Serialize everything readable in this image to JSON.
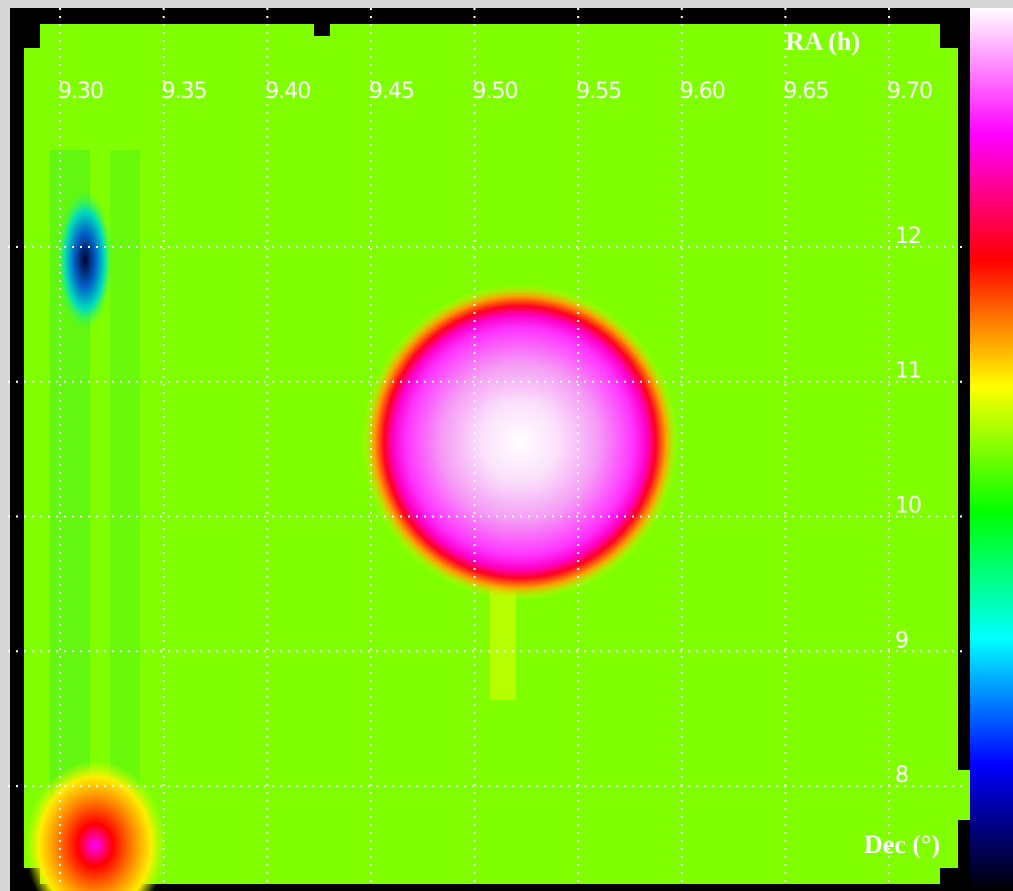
{
  "chart_data": {
    "type": "image",
    "xlabel": "RA (h)",
    "ylabel": "Dec (°)",
    "xlim": [
      9.2826,
      9.7381
    ],
    "ylim": [
      7.266,
      13.773
    ],
    "xticks": [
      {
        "value": 9.3,
        "label": "9.30"
      },
      {
        "value": 9.35,
        "label": "9.35"
      },
      {
        "value": 9.4,
        "label": "9.40"
      },
      {
        "value": 9.45,
        "label": "9.45"
      },
      {
        "value": 9.5,
        "label": "9.50"
      },
      {
        "value": 9.55,
        "label": "9.55"
      },
      {
        "value": 9.6,
        "label": "9.60"
      },
      {
        "value": 9.65,
        "label": "9.65"
      },
      {
        "value": 9.7,
        "label": "9.70"
      }
    ],
    "yticks": [
      8,
      9,
      10,
      11,
      12
    ],
    "grid": true,
    "colormap": [
      "#ffffff",
      "#ff00ff",
      "#ff0000",
      "#ffff00",
      "#00ff00",
      "#00ffff",
      "#0000ff",
      "#000000"
    ]
  }
}
